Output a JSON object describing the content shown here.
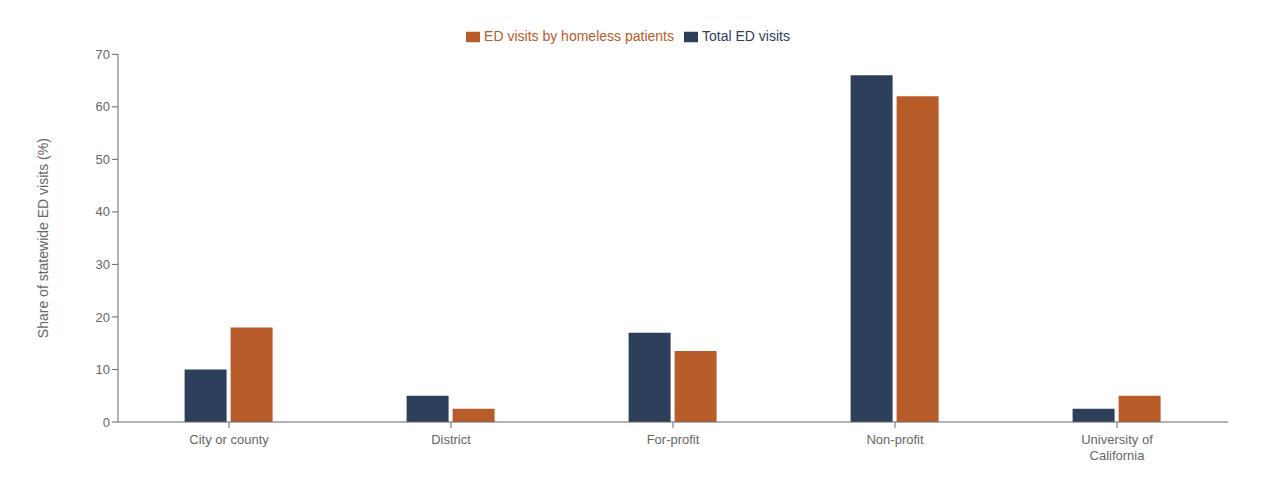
{
  "chart_data": {
    "type": "bar",
    "categories": [
      "City or county",
      "District",
      "For-profit",
      "Non-profit",
      "University of\nCalifornia"
    ],
    "series": [
      {
        "name": "Total ED visits",
        "color": "#2E3F5C",
        "values": [
          10,
          5,
          17,
          66,
          2.5
        ]
      },
      {
        "name": "ED visits by homeless patients",
        "color": "#B85C2A",
        "values": [
          18,
          2.5,
          13.5,
          62,
          5
        ]
      }
    ],
    "ylabel": "Share of statewide ED visits (%)",
    "ylim": [
      0,
      70
    ],
    "yticks": [
      0,
      10,
      20,
      30,
      40,
      50,
      60,
      70
    ],
    "grid": false,
    "legend": "top"
  }
}
